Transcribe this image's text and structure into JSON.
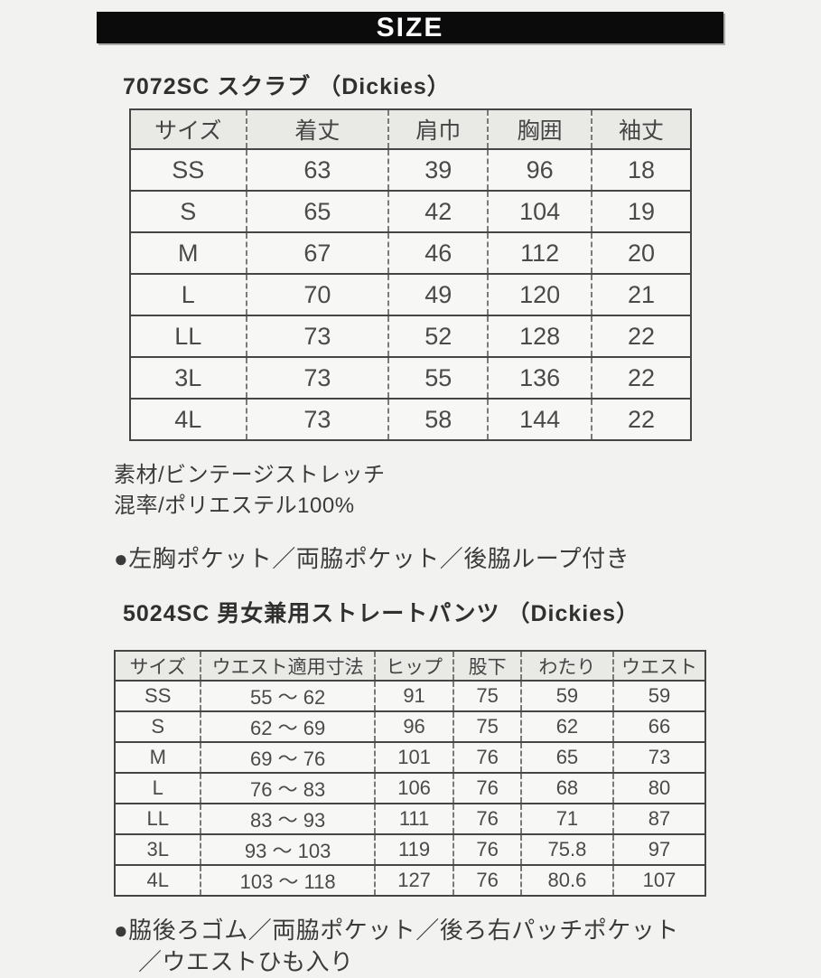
{
  "banner": {
    "label": "SIZE"
  },
  "colors": {
    "page_bg": "#f2f2f0",
    "banner_bg": "#0b0b0b",
    "banner_text": "#ffffff",
    "table_header_bg": "#e9e9e6",
    "table_cell_bg": "#f7f7f5",
    "table_border": "#464646",
    "text": "#3b3b3b"
  },
  "scrub": {
    "title": "7072SC スクラブ （Dickies）",
    "table": {
      "headers": [
        "サイズ",
        "着丈",
        "肩巾",
        "胸囲",
        "袖丈"
      ],
      "rows": [
        [
          "SS",
          "63",
          "39",
          "96",
          "18"
        ],
        [
          "S",
          "65",
          "42",
          "104",
          "19"
        ],
        [
          "M",
          "67",
          "46",
          "112",
          "20"
        ],
        [
          "L",
          "70",
          "49",
          "120",
          "21"
        ],
        [
          "LL",
          "73",
          "52",
          "128",
          "22"
        ],
        [
          "3L",
          "73",
          "55",
          "136",
          "22"
        ],
        [
          "4L",
          "73",
          "58",
          "144",
          "22"
        ]
      ]
    },
    "material": "素材/ビンテージストレッチ",
    "composition": "混率/ポリエステル100%",
    "features": "●左胸ポケット／両脇ポケット／後脇ループ付き"
  },
  "pants": {
    "title": "5024SC 男女兼用ストレートパンツ （Dickies）",
    "table": {
      "headers": [
        "サイズ",
        "ウエスト適用寸法",
        "ヒップ",
        "股下",
        "わたり",
        "ウエスト"
      ],
      "rows": [
        [
          "SS",
          "55 ～ 62",
          "91",
          "75",
          "59",
          "59"
        ],
        [
          "S",
          "62 ～ 69",
          "96",
          "75",
          "62",
          "66"
        ],
        [
          "M",
          "69 ～ 76",
          "101",
          "76",
          "65",
          "73"
        ],
        [
          "L",
          "76 ～ 83",
          "106",
          "76",
          "68",
          "80"
        ],
        [
          "LL",
          "83 ～ 93",
          "111",
          "76",
          "71",
          "87"
        ],
        [
          "3L",
          "93 ～ 103",
          "119",
          "76",
          "75.8",
          "97"
        ],
        [
          "4L",
          "103 ～ 118",
          "127",
          "76",
          "80.6",
          "107"
        ]
      ]
    },
    "features_line1": "●脇後ろゴム／両脇ポケット／後ろ右パッチポケット",
    "features_line2": "／ウエストひも入り"
  }
}
